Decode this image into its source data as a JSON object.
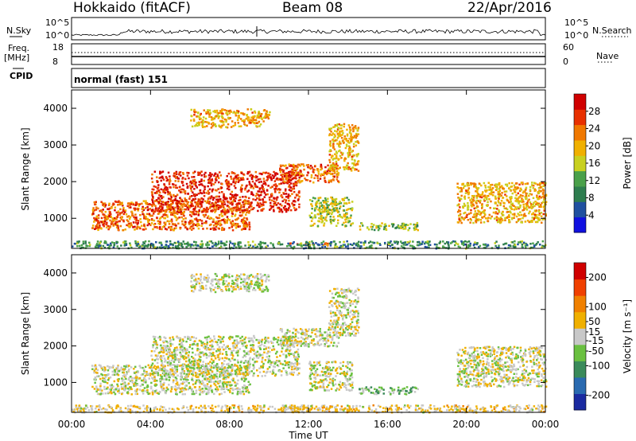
{
  "header": {
    "station": "Hokkaido (fitACF)",
    "beam": "Beam 08",
    "date": "22/Apr/2016"
  },
  "status_panels": {
    "nsky_label": "N.Sky",
    "nsky_ticks": [
      "10^5",
      "10^0"
    ],
    "nsearch_label": "N.Search",
    "nsearch_ticks": [
      "10^5",
      "10^0"
    ],
    "freq_label": "Freq.",
    "freq_unit": "[MHz]",
    "freq_ticks": [
      "18",
      "8"
    ],
    "nave_label": "Nave",
    "nave_ticks": [
      "60",
      "0"
    ],
    "cpid_label": "CPID",
    "cpid_value": "normal (fast) 151"
  },
  "chart_data": [
    {
      "type": "heatmap",
      "title": "",
      "xlabel": "",
      "ylabel": "Slant Range [km]",
      "x_ticks": [
        "00:00",
        "04:00",
        "08:00",
        "12:00",
        "16:00",
        "20:00",
        "00:00"
      ],
      "xlim_hours": [
        0,
        24
      ],
      "y_ticks": [
        1000,
        2000,
        3000,
        4000
      ],
      "ylim": [
        180,
        4500
      ],
      "colorbar": {
        "label": "Power [dB]",
        "range": [
          0,
          32
        ],
        "ticks": [
          4,
          8,
          12,
          16,
          20,
          24,
          28
        ],
        "colors": [
          "#1010e0",
          "#2050a0",
          "#2e7d4f",
          "#4aa04a",
          "#c8d020",
          "#f0b000",
          "#f07800",
          "#e83000",
          "#d00000"
        ]
      },
      "regions": [
        {
          "t": [
            1.0,
            9.0
          ],
          "r": [
            700,
            1500
          ],
          "value": 24
        },
        {
          "t": [
            4.0,
            11.5
          ],
          "r": [
            1200,
            2300
          ],
          "value": 28
        },
        {
          "t": [
            10.5,
            13.5
          ],
          "r": [
            2000,
            2500
          ],
          "value": 24
        },
        {
          "t": [
            13.0,
            14.5
          ],
          "r": [
            2300,
            3600
          ],
          "value": 20
        },
        {
          "t": [
            12.0,
            14.2
          ],
          "r": [
            800,
            1600
          ],
          "value": 16
        },
        {
          "t": [
            14.5,
            17.5
          ],
          "r": [
            700,
            900
          ],
          "value": 14
        },
        {
          "t": [
            19.5,
            24.0
          ],
          "r": [
            900,
            2000
          ],
          "value": 20
        },
        {
          "t": [
            6.0,
            10.0
          ],
          "r": [
            3500,
            4000
          ],
          "value": 20
        },
        {
          "t": [
            11.0,
            13.0
          ],
          "r": [
            280,
            350
          ],
          "value": 24
        },
        {
          "t": [
            0.0,
            24.0
          ],
          "r": [
            200,
            400
          ],
          "value": 10
        }
      ]
    },
    {
      "type": "heatmap",
      "title": "",
      "xlabel": "Time UT",
      "ylabel": "Slant Range [km]",
      "x_ticks": [
        "00:00",
        "04:00",
        "08:00",
        "12:00",
        "16:00",
        "20:00",
        "00:00"
      ],
      "xlim_hours": [
        0,
        24
      ],
      "y_ticks": [
        1000,
        2000,
        3000,
        4000
      ],
      "ylim": [
        180,
        4500
      ],
      "colorbar": {
        "label": "Velocity [m s⁻¹]",
        "range": [
          -250,
          250
        ],
        "ticks": [
          200,
          100,
          50,
          15,
          -15,
          -50,
          -100,
          -200
        ],
        "colors": [
          "#1a2aa0",
          "#2a6ab0",
          "#3a8a5a",
          "#6ac040",
          "#c8c8c8",
          "#f0b000",
          "#f08000",
          "#f04000",
          "#d00000"
        ]
      },
      "regions": [
        {
          "t": [
            1.0,
            9.0
          ],
          "r": [
            700,
            1500
          ],
          "value": 0
        },
        {
          "t": [
            4.0,
            11.5
          ],
          "r": [
            1200,
            2300
          ],
          "value": 0
        },
        {
          "t": [
            10.5,
            13.5
          ],
          "r": [
            2000,
            2500
          ],
          "value": 0
        },
        {
          "t": [
            13.0,
            14.5
          ],
          "r": [
            2300,
            3600
          ],
          "value": 0
        },
        {
          "t": [
            12.0,
            14.2
          ],
          "r": [
            800,
            1600
          ],
          "value": 0
        },
        {
          "t": [
            14.5,
            17.5
          ],
          "r": [
            700,
            900
          ],
          "value": -60
        },
        {
          "t": [
            19.5,
            24.0
          ],
          "r": [
            900,
            2000
          ],
          "value": 0
        },
        {
          "t": [
            6.0,
            10.0
          ],
          "r": [
            3500,
            4000
          ],
          "value": 0
        },
        {
          "t": [
            11.0,
            13.0
          ],
          "r": [
            280,
            350
          ],
          "value": 60
        },
        {
          "t": [
            0.0,
            24.0
          ],
          "r": [
            200,
            400
          ],
          "value": 30
        }
      ]
    }
  ]
}
